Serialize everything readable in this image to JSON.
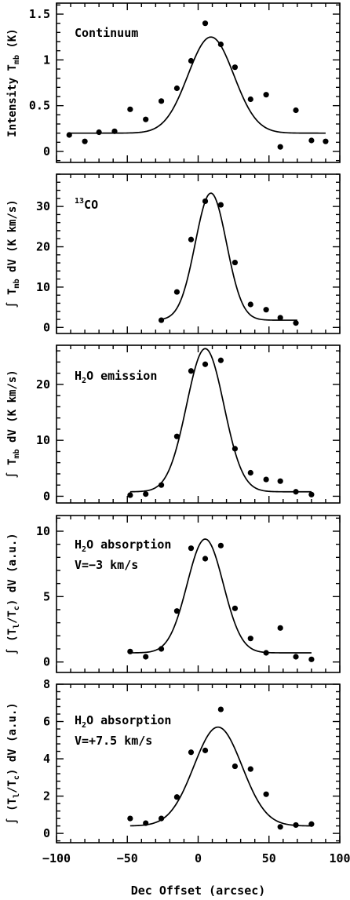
{
  "chart_data": [
    {
      "type": "scatter",
      "ylabel": [
        "Intensity T",
        "mb",
        " (K)"
      ],
      "annotation": [
        "Continuum"
      ],
      "ylim": [
        -0.12,
        1.62
      ],
      "yticks": [
        0,
        0.5,
        1,
        1.5
      ],
      "ytick_labels": [
        "0",
        "0.5",
        "1",
        "1.5"
      ],
      "points": {
        "x": [
          -91,
          -80,
          -70,
          -59,
          -48,
          -37,
          -26,
          -15,
          -5,
          5,
          16,
          26,
          37,
          48,
          58,
          69,
          80,
          90
        ],
        "y": [
          0.18,
          0.11,
          0.21,
          0.22,
          0.46,
          0.35,
          0.55,
          0.69,
          0.99,
          1.4,
          1.17,
          0.92,
          0.57,
          0.62,
          0.05,
          0.45,
          0.12,
          0.11
        ]
      },
      "fit": {
        "x_range": [
          -92,
          90
        ],
        "baseline": 0.2,
        "amplitude": 1.05,
        "center": 9,
        "fwhm": 38
      }
    },
    {
      "type": "scatter",
      "ylabel": [
        "∫ T",
        "mb",
        " dV  (K km/s)"
      ],
      "annotation": [
        "13",
        "CO"
      ],
      "ylim": [
        -1.5,
        38
      ],
      "yticks": [
        0,
        10,
        20,
        30
      ],
      "ytick_labels": [
        "0",
        "10",
        "20",
        "30"
      ],
      "points": {
        "x": [
          -26,
          -15,
          -5,
          5,
          16,
          26,
          37,
          48,
          58,
          69
        ],
        "y": [
          1.8,
          8.8,
          21.8,
          31.3,
          30.4,
          16.1,
          5.7,
          4.4,
          2.4,
          1.1
        ]
      },
      "fit": {
        "x_range": [
          -26,
          70
        ],
        "baseline": 1.8,
        "amplitude": 31.5,
        "center": 9,
        "fwhm": 26
      }
    },
    {
      "type": "scatter",
      "ylabel": [
        "∫ T",
        "mb",
        " dV  (K km/s)"
      ],
      "annotation": [
        "H",
        "2",
        "O emission"
      ],
      "ylim": [
        -1.2,
        27
      ],
      "yticks": [
        0,
        10,
        20
      ],
      "ytick_labels": [
        "0",
        "10",
        "20"
      ],
      "points": {
        "x": [
          -48,
          -37,
          -26,
          -15,
          -5,
          5,
          16,
          26,
          37,
          48,
          58,
          69,
          80
        ],
        "y": [
          0.2,
          0.4,
          2.0,
          10.7,
          22.4,
          23.6,
          24.3,
          8.5,
          4.2,
          3.0,
          2.7,
          0.8,
          0.3
        ]
      },
      "fit": {
        "x_range": [
          -48,
          80
        ],
        "baseline": 0.8,
        "amplitude": 25.6,
        "center": 5,
        "fwhm": 31
      }
    },
    {
      "type": "scatter",
      "ylabel": [
        "∫ (T",
        "l",
        "/T",
        "c",
        ") dV  (a.u.)"
      ],
      "annotation": [
        "H",
        "2",
        "O absorption",
        "V=−3 km/s"
      ],
      "ylim": [
        -0.8,
        11.2
      ],
      "yticks": [
        0,
        5,
        10
      ],
      "ytick_labels": [
        "0",
        "5",
        "10"
      ],
      "points": {
        "x": [
          -48,
          -37,
          -26,
          -15,
          -5,
          5,
          16,
          26,
          37,
          48,
          58,
          69,
          80
        ],
        "y": [
          0.8,
          0.4,
          1.0,
          3.9,
          8.7,
          7.9,
          8.9,
          4.1,
          1.8,
          0.7,
          2.6,
          0.4,
          0.2
        ]
      },
      "fit": {
        "x_range": [
          -48,
          80
        ],
        "baseline": 0.7,
        "amplitude": 8.7,
        "center": 5,
        "fwhm": 30
      }
    },
    {
      "type": "scatter",
      "ylabel": [
        "∫ (T",
        "l",
        "/T",
        "c",
        ") dV  (a.u.)"
      ],
      "annotation": [
        "H",
        "2",
        "O absorption",
        "V=+7.5 km/s"
      ],
      "ylim": [
        -0.5,
        8.0
      ],
      "yticks": [
        0,
        2,
        4,
        6,
        8
      ],
      "ytick_labels": [
        "0",
        "2",
        "4",
        "6",
        "8"
      ],
      "points": {
        "x": [
          -48,
          -37,
          -26,
          -15,
          -5,
          5,
          16,
          26,
          37,
          48,
          58,
          69,
          80
        ],
        "y": [
          0.8,
          0.55,
          0.8,
          1.95,
          4.35,
          4.45,
          6.65,
          3.6,
          3.45,
          2.1,
          0.35,
          0.45,
          0.5
        ]
      },
      "fit": {
        "x_range": [
          -48,
          80
        ],
        "baseline": 0.4,
        "amplitude": 5.3,
        "center": 14,
        "fwhm": 40
      }
    }
  ],
  "x_axis": {
    "label": "Dec Offset (arcsec)",
    "xlim": [
      -100,
      100
    ],
    "ticks": [
      -100,
      -50,
      0,
      50,
      100
    ],
    "tick_labels": [
      "−100",
      "−50",
      "0",
      "50",
      "100"
    ],
    "minor_step": 10
  }
}
